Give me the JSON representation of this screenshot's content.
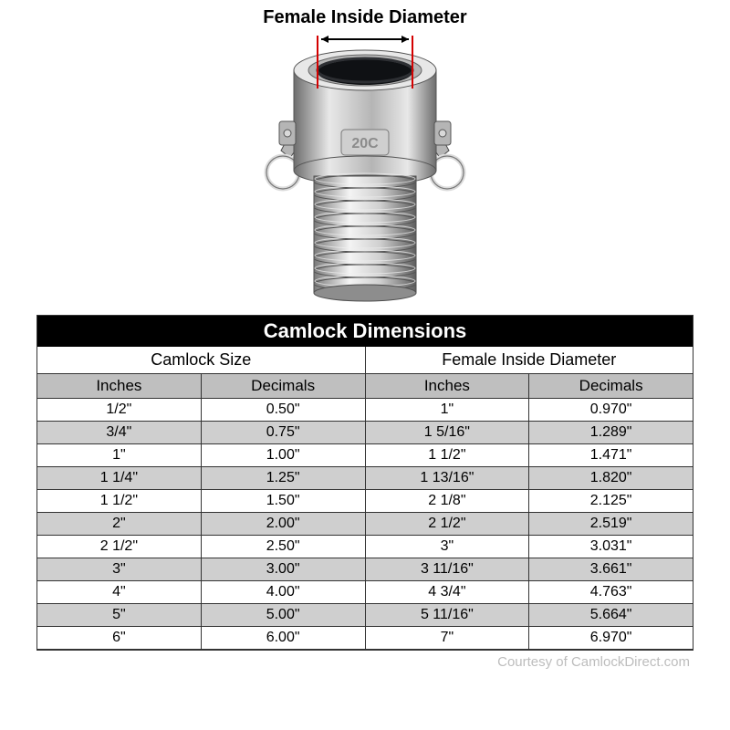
{
  "diagram": {
    "title": "Female Inside Diameter",
    "marking": "20C",
    "indicator_color": "#d40000",
    "arrow_color": "#000000",
    "metal_light": "#e8e8e8",
    "metal_mid": "#b5b5b5",
    "metal_dark": "#6d6d6d",
    "ring_color": "#dcdcdc",
    "inner_hole": "#0f1114"
  },
  "table": {
    "title": "Camlock Dimensions",
    "group_headers": [
      "Camlock Size",
      "Female Inside Diameter"
    ],
    "sub_headers": [
      "Inches",
      "Decimals",
      "Inches",
      "Decimals"
    ],
    "header_bg": "#bfbfbf",
    "row_bg_even": "#ffffff",
    "row_bg_odd": "#cfcfcf",
    "border_color": "#333333",
    "title_bg": "#000000",
    "title_color": "#ffffff",
    "title_fontsize": 22,
    "group_fontsize": 18,
    "sub_fontsize": 17,
    "cell_fontsize": 16,
    "rows": [
      [
        "1/2\"",
        "0.50\"",
        "1\"",
        "0.970\""
      ],
      [
        "3/4\"",
        "0.75\"",
        "1 5/16\"",
        "1.289\""
      ],
      [
        "1\"",
        "1.00\"",
        "1 1/2\"",
        "1.471\""
      ],
      [
        "1 1/4\"",
        "1.25\"",
        "1 13/16\"",
        "1.820\""
      ],
      [
        "1 1/2\"",
        "1.50\"",
        "2 1/8\"",
        "2.125\""
      ],
      [
        "2\"",
        "2.00\"",
        "2 1/2\"",
        "2.519\""
      ],
      [
        "2 1/2\"",
        "2.50\"",
        "3\"",
        "3.031\""
      ],
      [
        "3\"",
        "3.00\"",
        "3 11/16\"",
        "3.661\""
      ],
      [
        "4\"",
        "4.00\"",
        "4 3/4\"",
        "4.763\""
      ],
      [
        "5\"",
        "5.00\"",
        "5 11/16\"",
        "5.664\""
      ],
      [
        "6\"",
        "6.00\"",
        "7\"",
        "6.970\""
      ]
    ]
  },
  "courtesy": "Courtesy of CamlockDirect.com"
}
